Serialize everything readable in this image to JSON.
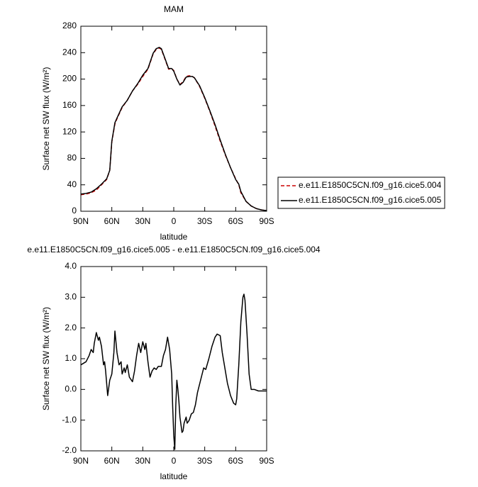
{
  "chart_data": [
    {
      "type": "line",
      "title": "MAM",
      "x_label": "latitude",
      "y_label": "Surface net SW flux (W/m²)",
      "xlim": [
        90,
        -90
      ],
      "xticks": [
        {
          "value": 90,
          "label": "90N"
        },
        {
          "value": 60,
          "label": "60N"
        },
        {
          "value": 30,
          "label": "30N"
        },
        0,
        {
          "value": -30,
          "label": "30S"
        },
        {
          "value": -60,
          "label": "60S"
        },
        {
          "value": -90,
          "label": "90S"
        }
      ],
      "ylim": [
        0,
        280
      ],
      "yticks": [
        0,
        40,
        80,
        120,
        160,
        200,
        240,
        280
      ],
      "legend": "right",
      "x": [
        90,
        85,
        80,
        75,
        70,
        65,
        62,
        60,
        57,
        55,
        50,
        45,
        40,
        35,
        30,
        25,
        20,
        17,
        14,
        12,
        8,
        5,
        2,
        0,
        -3,
        -6,
        -9,
        -12,
        -15,
        -18,
        -20,
        -25,
        -30,
        -35,
        -40,
        -45,
        -50,
        -55,
        -60,
        -63,
        -65,
        -70,
        -75,
        -80,
        -85,
        -90
      ],
      "series": [
        {
          "name": "e.e11.E1850C5CN.f09_g16.cice5.004",
          "color": "#cc0000",
          "line_style": "dashed",
          "values": [
            25,
            26,
            28,
            32,
            40,
            48,
            62,
            105,
            132,
            140,
            157,
            168,
            182,
            192,
            204,
            215,
            238,
            245,
            247,
            245,
            228,
            215,
            216,
            213,
            200,
            192,
            196,
            204,
            205,
            204,
            202,
            189,
            171,
            151,
            129,
            106,
            85,
            66,
            49,
            40,
            28,
            15,
            8,
            4,
            2,
            1
          ]
        },
        {
          "name": "e.e11.E1850C5CN.f09_g16.cice5.005",
          "color": "#000000",
          "line_style": "solid",
          "values": [
            26,
            27,
            29,
            34,
            41,
            49,
            62,
            106,
            134,
            141,
            158,
            168,
            182,
            193,
            206,
            216,
            239,
            246,
            248,
            246,
            229,
            216,
            216,
            212,
            200,
            191,
            195,
            203,
            204,
            204,
            202,
            190,
            172,
            152,
            131,
            108,
            86,
            66,
            48,
            41,
            30,
            15,
            8,
            4,
            2,
            1
          ]
        }
      ]
    },
    {
      "type": "line",
      "title": "e.e11.E1850C5CN.f09_g16.cice5.005 - e.e11.E1850C5CN.f09_g16.cice5.004",
      "x_label": "latitude",
      "y_label": "Surface net SW flux (W/m²)",
      "xlim": [
        90,
        -90
      ],
      "xticks": [
        {
          "value": 90,
          "label": "90N"
        },
        {
          "value": 60,
          "label": "60N"
        },
        {
          "value": 30,
          "label": "30N"
        },
        0,
        {
          "value": -30,
          "label": "30S"
        },
        {
          "value": -60,
          "label": "60S"
        },
        {
          "value": -90,
          "label": "90S"
        }
      ],
      "ylim": [
        -2,
        4
      ],
      "yticks": [
        {
          "value": -2,
          "label": "-2.0"
        },
        {
          "value": -1,
          "label": "-1.0"
        },
        {
          "value": 0,
          "label": "0.0"
        },
        {
          "value": 1,
          "label": "1.0"
        },
        {
          "value": 2,
          "label": "2.0"
        },
        {
          "value": 3,
          "label": "3.0"
        },
        {
          "value": 4,
          "label": "4.0"
        }
      ],
      "x": [
        90,
        85,
        82,
        80,
        78,
        77,
        75,
        73,
        72,
        70,
        68,
        67,
        66,
        64,
        62,
        60,
        58,
        57,
        55,
        53,
        51,
        50,
        48,
        47,
        45,
        43,
        40,
        38,
        36,
        34,
        32,
        30,
        28,
        27,
        25,
        23,
        21,
        19,
        17,
        15,
        12,
        10,
        8,
        6,
        4,
        2,
        1,
        0,
        -1,
        -2,
        -3,
        -4,
        -5,
        -6,
        -8,
        -9,
        -10,
        -12,
        -13,
        -15,
        -17,
        -19,
        -21,
        -23,
        -26,
        -29,
        -31,
        -34,
        -37,
        -40,
        -42,
        -45,
        -47,
        -50,
        -52,
        -55,
        -58,
        -60,
        -61,
        -63,
        -65,
        -67,
        -68,
        -69,
        -71,
        -73,
        -75,
        -78,
        -82,
        -90
      ],
      "series": [
        {
          "color": "#000000",
          "line_style": "solid",
          "values": [
            0.8,
            0.9,
            1.1,
            1.3,
            1.2,
            1.5,
            1.85,
            1.6,
            1.7,
            1.4,
            0.8,
            0.9,
            0.6,
            -0.2,
            0.3,
            0.5,
            1.2,
            1.9,
            1.2,
            0.8,
            0.9,
            0.5,
            0.7,
            0.55,
            0.8,
            0.4,
            0.25,
            0.6,
            1.1,
            1.5,
            1.2,
            1.55,
            1.3,
            1.5,
            0.9,
            0.4,
            0.6,
            0.7,
            0.65,
            0.75,
            0.75,
            1.1,
            1.3,
            1.7,
            1.3,
            0.5,
            -0.6,
            -1.5,
            -1.95,
            -0.5,
            0.3,
            0.0,
            -0.4,
            -0.9,
            -1.4,
            -1.35,
            -1.1,
            -0.9,
            -1.1,
            -1.0,
            -0.8,
            -0.75,
            -0.5,
            -0.1,
            0.3,
            0.7,
            0.65,
            1.0,
            1.4,
            1.7,
            1.8,
            1.75,
            1.2,
            0.6,
            0.2,
            -0.2,
            -0.45,
            -0.5,
            -0.3,
            0.8,
            2.2,
            3.0,
            3.1,
            2.9,
            1.8,
            0.5,
            0.0,
            0.0,
            -0.05,
            -0.05
          ]
        }
      ]
    }
  ]
}
